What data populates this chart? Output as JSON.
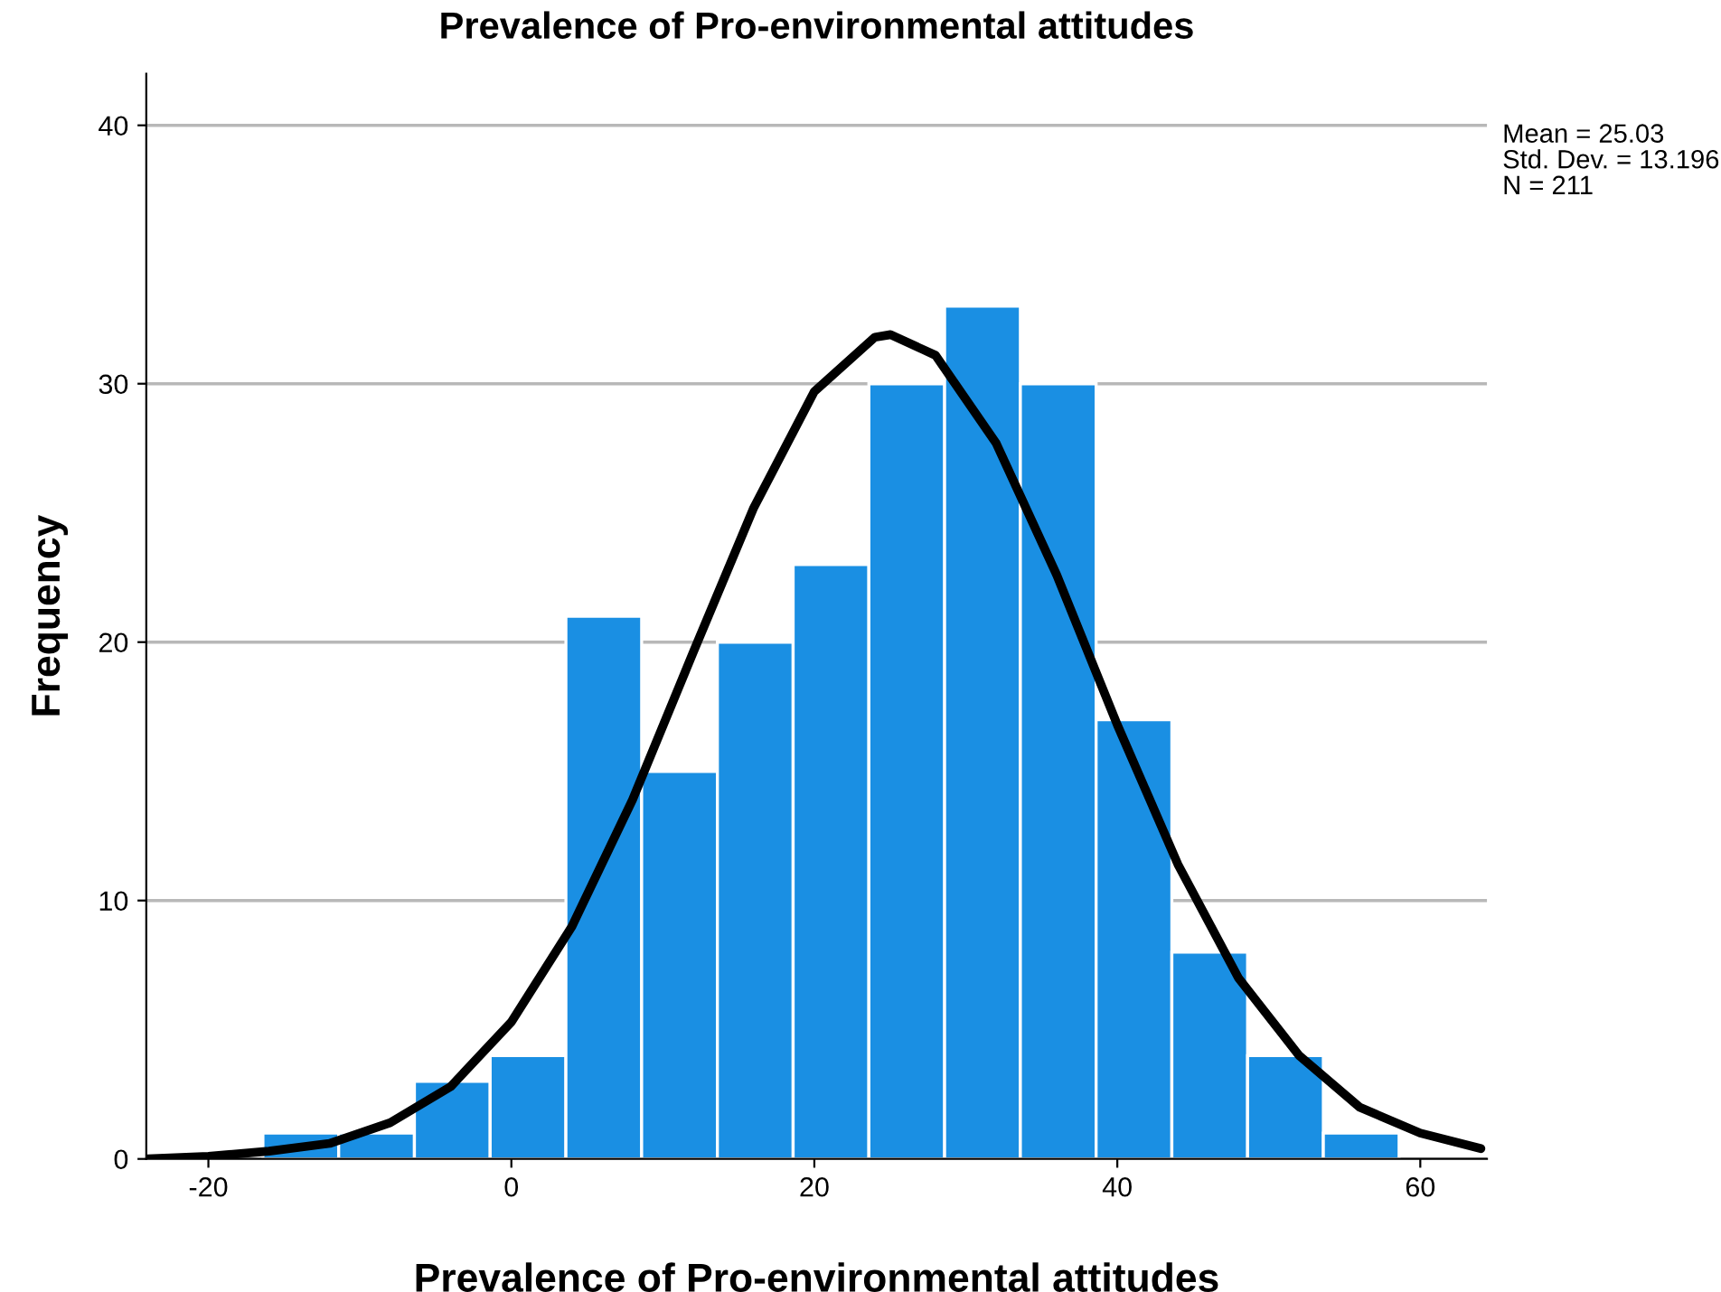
{
  "chart_data": {
    "type": "histogram",
    "title": "Prevalence of Pro-environmental attitudes",
    "xlabel": "Prevalence of Pro-environmental attitudes",
    "ylabel": "Frequency",
    "bins": [
      -16.4,
      -11.4,
      -6.4,
      -1.4,
      3.6,
      8.6,
      13.6,
      18.6,
      23.6,
      28.6,
      33.6,
      38.6,
      43.6,
      48.6,
      53.6,
      58.6
    ],
    "values": [
      1,
      1,
      3,
      4,
      21,
      15,
      20,
      23,
      30,
      33,
      30,
      17,
      8,
      4,
      1
    ],
    "color": "#1a8fe3",
    "series": [
      {
        "type": "line",
        "color": "#000000",
        "x": [
          -24,
          -20,
          -16,
          -12,
          -8,
          -4,
          0,
          4,
          8,
          12,
          16,
          20,
          24,
          25.03,
          28,
          32,
          36,
          40,
          44,
          48,
          52,
          56,
          60,
          64
        ],
        "values": [
          0.0,
          0.1,
          0.3,
          0.6,
          1.4,
          2.8,
          5.3,
          9.0,
          13.9,
          19.6,
          25.2,
          29.7,
          31.8,
          31.9,
          31.1,
          27.7,
          22.6,
          16.8,
          11.4,
          7.0,
          4.0,
          2.0,
          1.0,
          0.4
        ]
      }
    ],
    "xlim": [
      -24.1,
      64.4
    ],
    "xticks": [
      -20,
      0,
      20,
      40,
      60
    ],
    "ylim": [
      0,
      42
    ],
    "yticks": [
      0,
      10,
      20,
      30,
      40
    ],
    "grid": "y",
    "annotations": [
      "Mean = 25.03",
      "Std. Dev. = 13.196",
      "N = 211"
    ]
  }
}
